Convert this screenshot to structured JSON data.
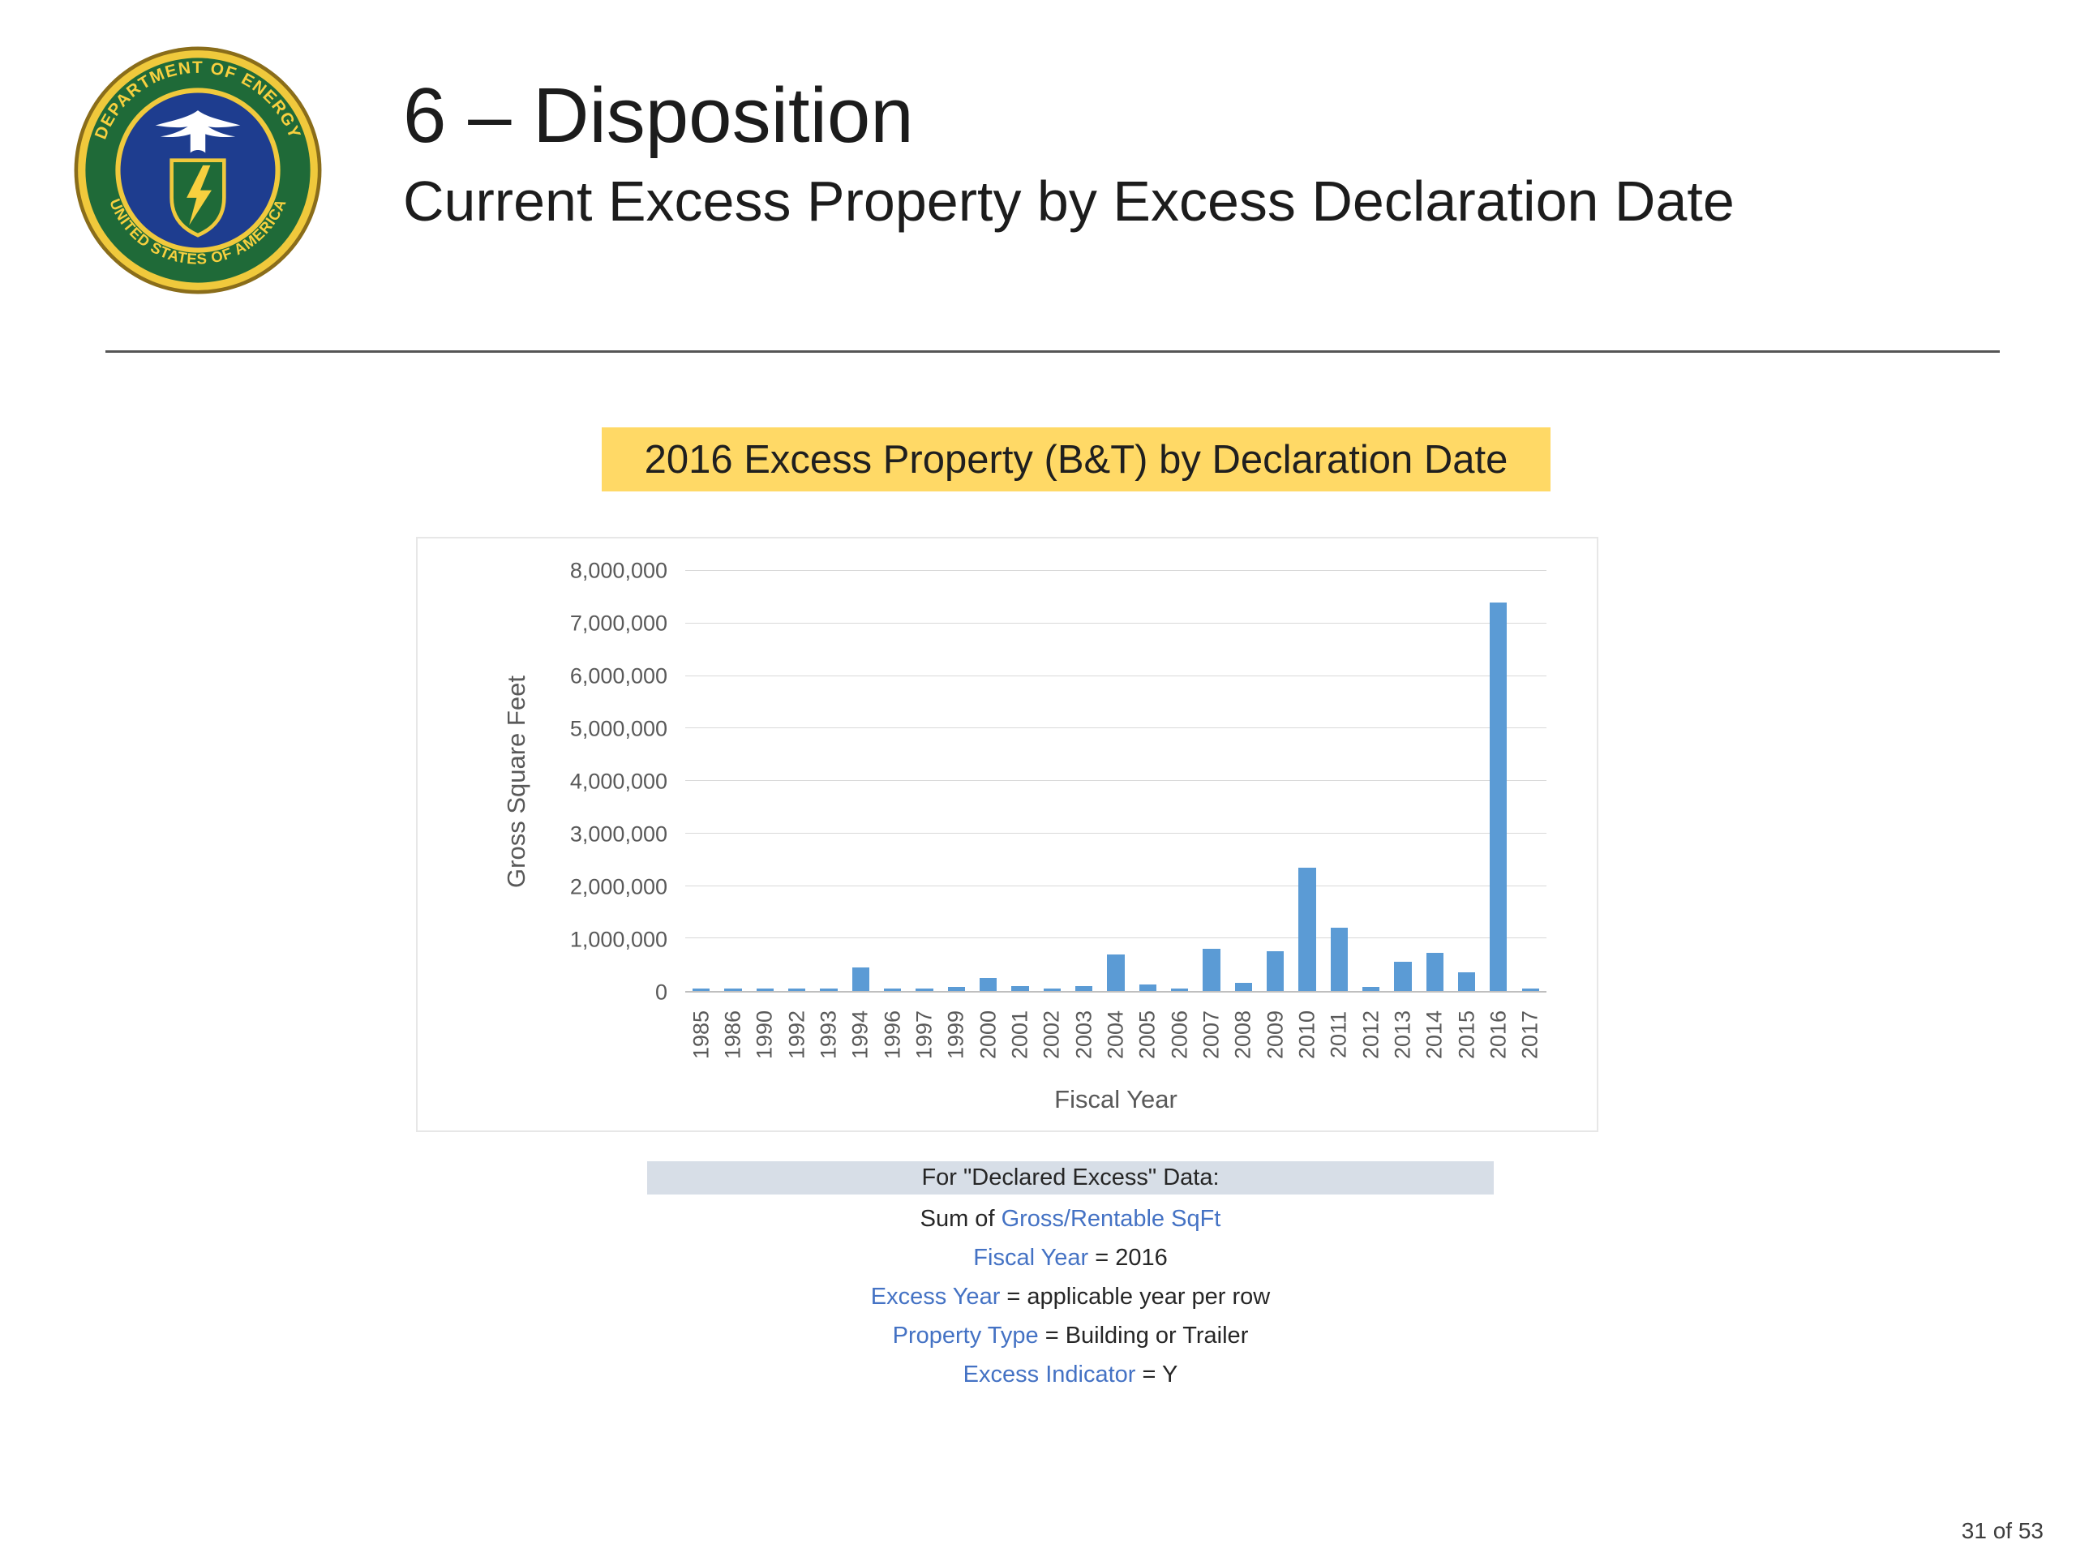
{
  "slide": {
    "title": "6 – Disposition",
    "subtitle": "Current Excess Property by Excess Declaration Date",
    "page_number": "31 of 53"
  },
  "logo": {
    "alt": "United States Department of Energy seal",
    "ring_text_top": "DEPARTMENT OF ENERGY",
    "ring_text_bottom": "UNITED STATES OF AMERICA"
  },
  "chart_data": {
    "type": "bar",
    "title": "2016 Excess Property (B&T) by Declaration Date",
    "title_highlight_color": "#FFD966",
    "xlabel": "Fiscal Year",
    "ylabel": "Gross Square Feet",
    "ylim": [
      0,
      8000000
    ],
    "ytick_step": 1000000,
    "grid": true,
    "legend": "none",
    "bar_color": "#5B9BD5",
    "categories": [
      "1985",
      "1986",
      "1990",
      "1992",
      "1993",
      "1994",
      "1996",
      "1997",
      "1999",
      "2000",
      "2001",
      "2002",
      "2003",
      "2004",
      "2005",
      "2006",
      "2007",
      "2008",
      "2009",
      "2010",
      "2011",
      "2012",
      "2013",
      "2014",
      "2015",
      "2016",
      "2017"
    ],
    "values": [
      30000,
      30000,
      30000,
      30000,
      40000,
      450000,
      30000,
      30000,
      80000,
      250000,
      100000,
      40000,
      100000,
      700000,
      120000,
      40000,
      800000,
      150000,
      750000,
      2350000,
      1200000,
      80000,
      550000,
      720000,
      350000,
      7400000,
      30000
    ]
  },
  "notes": {
    "header": "For \"Declared Excess\" Data:",
    "link_color": "#4472C4",
    "lines": [
      {
        "parts": [
          {
            "text": "Sum of ",
            "style": "plain"
          },
          {
            "text": "Gross/Rentable SqFt",
            "style": "field"
          }
        ]
      },
      {
        "parts": [
          {
            "text": "Fiscal Year",
            "style": "field"
          },
          {
            "text": " = 2016",
            "style": "plain"
          }
        ]
      },
      {
        "parts": [
          {
            "text": "Excess Year",
            "style": "field"
          },
          {
            "text": " = applicable year per row",
            "style": "plain"
          }
        ]
      },
      {
        "parts": [
          {
            "text": "Property Type",
            "style": "field"
          },
          {
            "text": " = Building or Trailer",
            "style": "plain"
          }
        ]
      },
      {
        "parts": [
          {
            "text": "Excess Indicator",
            "style": "field"
          },
          {
            "text": " = Y",
            "style": "plain"
          }
        ]
      }
    ]
  }
}
